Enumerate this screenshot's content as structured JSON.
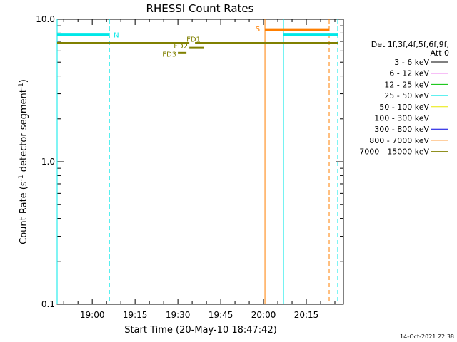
{
  "chart_data": {
    "type": "line",
    "title": "RHESSI Count Rates",
    "xlabel": "Start Time (20-May-10 18:47:42)",
    "ylabel_main": "Count Rate (s",
    "ylabel_sup1": "-1",
    "ylabel_mid": " detector segment",
    "ylabel_sup2": "-1",
    "ylabel_end": ")",
    "yscale": "log",
    "ylim": [
      0.1,
      10.0
    ],
    "xlim": [
      "18:47:42",
      "20:28:00"
    ],
    "x_ticks": [
      "19:00",
      "19:15",
      "19:30",
      "19:45",
      "20:00",
      "20:15"
    ],
    "y_ticks": [
      "0.1",
      "1.0",
      "10.0"
    ],
    "legend_title": [
      "Det 1f,3f,4f,5f,6f,9f,",
      "Att 0"
    ],
    "legend": [
      {
        "label": "3 - 6 keV",
        "color": "#000000"
      },
      {
        "label": "6 - 12 keV",
        "color": "#e000e0"
      },
      {
        "label": "12 - 25 keV",
        "color": "#00c000"
      },
      {
        "label": "25 - 50 keV",
        "color": "#00e8e8"
      },
      {
        "label": "50 - 100 keV",
        "color": "#e8e800"
      },
      {
        "label": "100 - 300 keV",
        "color": "#e00000"
      },
      {
        "label": "300 - 800 keV",
        "color": "#0000e0"
      },
      {
        "label": "800 - 7000 keV",
        "color": "#ff7f00"
      },
      {
        "label": "7000 - 15000 keV",
        "color": "#808000"
      }
    ],
    "flags": [
      {
        "label": "N",
        "color": "#00e8e8",
        "segments": [
          {
            "start": "18:47:42",
            "end": "19:06:00",
            "y": 7.8
          },
          {
            "start": "20:07:00",
            "end": "20:26:00",
            "y": 7.8
          }
        ]
      },
      {
        "label": "S",
        "color": "#ff7f00",
        "segments": [
          {
            "start": "20:00:30",
            "end": "20:23:00",
            "y": 8.4
          }
        ]
      },
      {
        "label": "FD1",
        "color": "#808000",
        "segments": [
          {
            "start": "18:47:42",
            "end": "19:34:00",
            "y": 6.8
          },
          {
            "start": "19:36:00",
            "end": "20:26:00",
            "y": 6.8
          }
        ]
      },
      {
        "label": "FD2",
        "color": "#808000",
        "segments": [
          {
            "start": "19:34:00",
            "end": "19:39:00",
            "y": 6.3
          }
        ]
      },
      {
        "label": "FD3",
        "color": "#808000",
        "segments": [
          {
            "start": "19:30:00",
            "end": "19:33:00",
            "y": 5.8
          }
        ]
      }
    ],
    "vlines": [
      {
        "x": "18:47:42",
        "color": "#00e8e8",
        "style": "solid"
      },
      {
        "x": "19:06:00",
        "color": "#00e8e8",
        "style": "dashed"
      },
      {
        "x": "20:00:30",
        "color": "#ff7f00",
        "style": "solid"
      },
      {
        "x": "20:07:00",
        "color": "#00e8e8",
        "style": "solid"
      },
      {
        "x": "20:23:00",
        "color": "#ff7f00",
        "style": "dashed"
      },
      {
        "x": "20:26:00",
        "color": "#00e8e8",
        "style": "dashed"
      }
    ],
    "timestamp": "14-Oct-2021 22:38"
  }
}
